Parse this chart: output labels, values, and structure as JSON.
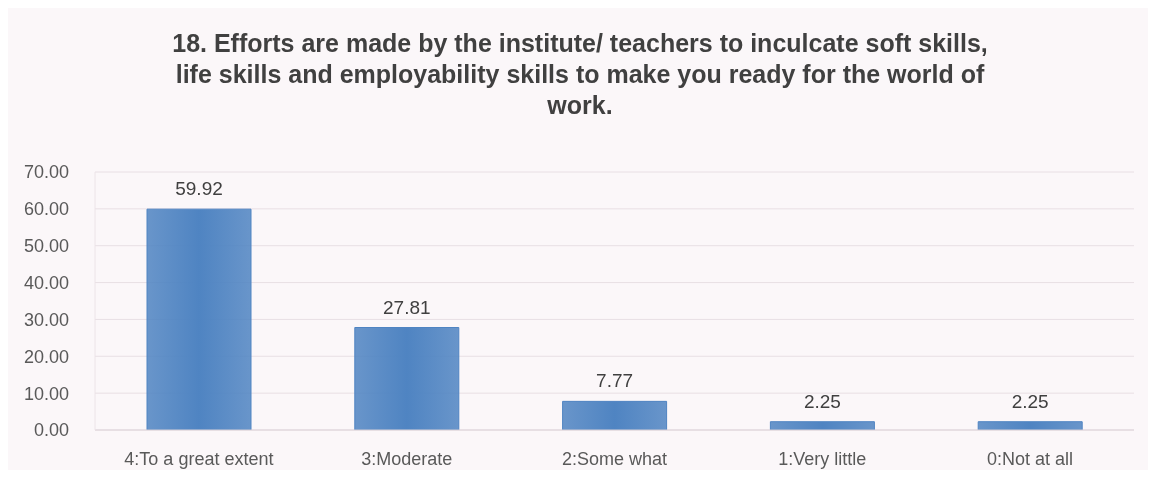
{
  "chart_data": {
    "type": "bar",
    "title": "18. Efforts are made by the institute/ teachers to inculcate soft skills, life skills and employability skills to make you ready for the world of work.",
    "categories": [
      "4:To a great extent",
      "3:Moderate",
      "2:Some what",
      "1:Very little",
      "0:Not at all"
    ],
    "values": [
      59.92,
      27.81,
      7.77,
      2.25,
      2.25
    ],
    "color": "#4f84c2",
    "ylim": [
      0,
      70
    ],
    "yticks": [
      {
        "value": 0,
        "label": "0.00"
      },
      {
        "value": 10,
        "label": "10.00"
      },
      {
        "value": 20,
        "label": "20.00"
      },
      {
        "value": 30,
        "label": "30.00"
      },
      {
        "value": 40,
        "label": "40.00"
      },
      {
        "value": 50,
        "label": "50.00"
      },
      {
        "value": 60,
        "label": "60.00"
      },
      {
        "value": 70,
        "label": "70.00"
      }
    ],
    "grid": "y",
    "data_labels": true
  }
}
